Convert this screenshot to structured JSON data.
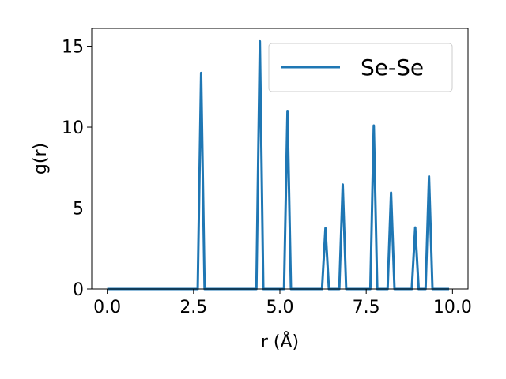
{
  "chart_data": {
    "type": "line",
    "xlabel": "r (Å)",
    "ylabel": "g(r)",
    "xlim": [
      -0.45,
      10.45
    ],
    "ylim": [
      0,
      16.1
    ],
    "xticks": [
      0.0,
      2.5,
      5.0,
      7.5,
      10.0
    ],
    "xtick_labels": [
      "0.0",
      "2.5",
      "5.0",
      "7.5",
      "10.0"
    ],
    "yticks": [
      0,
      5,
      10,
      15
    ],
    "ytick_labels": [
      "0",
      "5",
      "10",
      "15"
    ],
    "grid": false,
    "legend_position": "top-right",
    "series": [
      {
        "name": "Se-Se",
        "color": "#1f77b4",
        "x": [
          0.0,
          2.62,
          2.72,
          2.82,
          4.32,
          4.42,
          4.52,
          5.12,
          5.22,
          5.32,
          6.22,
          6.32,
          6.42,
          6.72,
          6.82,
          6.92,
          7.62,
          7.72,
          7.82,
          8.12,
          8.22,
          8.32,
          8.82,
          8.92,
          9.02,
          9.22,
          9.32,
          9.42,
          9.9
        ],
        "y": [
          0,
          0,
          13.35,
          0,
          0,
          15.3,
          0,
          0,
          11.0,
          0,
          0,
          3.75,
          0,
          0,
          6.45,
          0,
          0,
          10.1,
          0,
          0,
          5.95,
          0,
          0,
          3.8,
          0,
          0,
          6.95,
          0,
          0
        ]
      }
    ]
  }
}
